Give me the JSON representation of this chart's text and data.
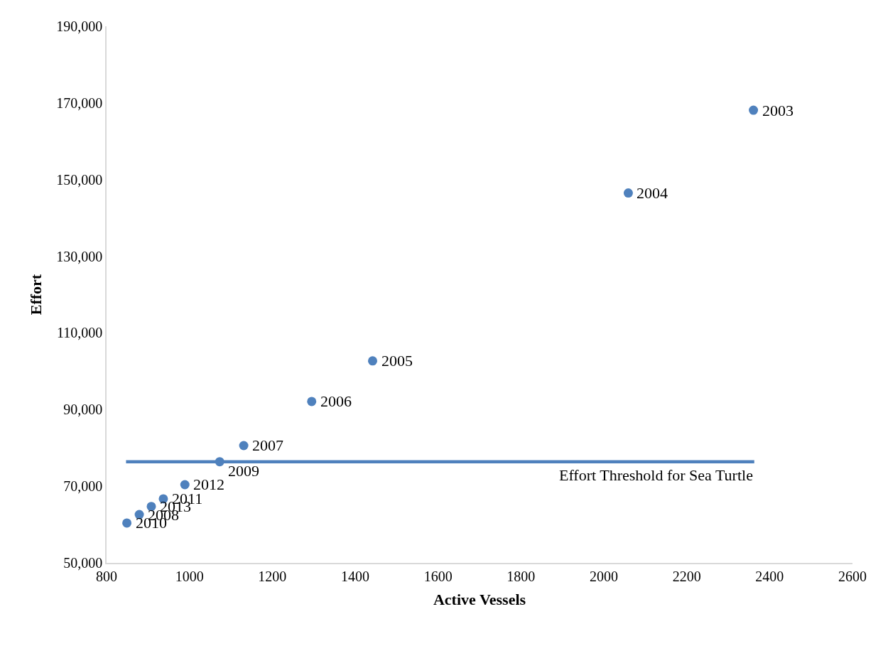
{
  "chart_data": {
    "type": "scatter",
    "xlabel": "Active Vessels",
    "ylabel": "Effort",
    "xlim": [
      800,
      2600
    ],
    "xticks": [
      800,
      1000,
      1200,
      1400,
      1600,
      1800,
      2000,
      2200,
      2400,
      2600
    ],
    "ylim": [
      50000,
      190000
    ],
    "yticks": [
      {
        "value": 50000,
        "label": "50,000"
      },
      {
        "value": 70000,
        "label": "70,000"
      },
      {
        "value": 90000,
        "label": "90,000"
      },
      {
        "value": 110000,
        "label": "110,000"
      },
      {
        "value": 130000,
        "label": "130,000"
      },
      {
        "value": 150000,
        "label": "150,000"
      },
      {
        "value": 170000,
        "label": "170,000"
      },
      {
        "value": 190000,
        "label": "190,000"
      }
    ],
    "marker": "circle",
    "series": [
      {
        "color": "#4f81bd",
        "x": [
          2361,
          2059,
          1442,
          1295,
          1131,
          1073,
          989,
          937,
          908,
          879,
          849
        ],
        "values": [
          168100,
          146500,
          102700,
          92100,
          80600,
          76400,
          70400,
          66700,
          64700,
          62600,
          60400
        ]
      },
      {
        "type": "line",
        "color": "#4f81bd",
        "x": [
          847,
          2363
        ],
        "values": [
          76400,
          76400
        ],
        "line_style": "solid",
        "marker": "none"
      }
    ],
    "annotations": [
      {
        "text": "2003",
        "x": 2361,
        "y": 168100
      },
      {
        "text": "2004",
        "x": 2059,
        "y": 146500
      },
      {
        "text": "2005",
        "x": 1442,
        "y": 102700
      },
      {
        "text": "2006",
        "x": 1295,
        "y": 92100
      },
      {
        "text": "2007",
        "x": 1131,
        "y": 80600
      },
      {
        "text": "2009",
        "x": 1073,
        "y": 76400
      },
      {
        "text": "2012",
        "x": 989,
        "y": 70400
      },
      {
        "text": "2011",
        "x": 937,
        "y": 66700
      },
      {
        "text": "2013",
        "x": 908,
        "y": 64700
      },
      {
        "text": "2008",
        "x": 879,
        "y": 62600
      },
      {
        "text": "2010",
        "x": 849,
        "y": 60400
      },
      "Effort Threshold for Sea Turtle"
    ]
  }
}
